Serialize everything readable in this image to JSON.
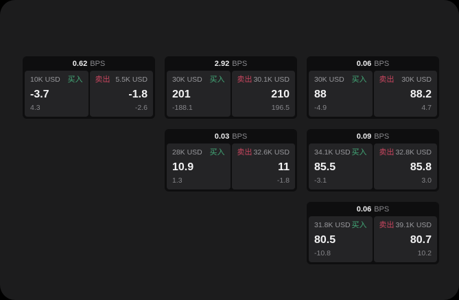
{
  "labels": {
    "buy": "买入",
    "sell": "卖出",
    "bps_unit": "BPS"
  },
  "colors": {
    "buy_green": "#43a978",
    "sell_red": "#c9465f",
    "background": "#1c1c1d",
    "card": "#0e0e0f",
    "panel": "#242426"
  },
  "cards": [
    {
      "row": 1,
      "col": 1,
      "bps": "0.62",
      "buy": {
        "size": "10K USD",
        "price": "-3.7",
        "delta": "4.3"
      },
      "sell": {
        "size": "5.5K USD",
        "price": "-1.8",
        "delta": "-2.6"
      }
    },
    {
      "row": 1,
      "col": 2,
      "bps": "2.92",
      "buy": {
        "size": "30K USD",
        "price": "201",
        "delta": "-188.1"
      },
      "sell": {
        "size": "30.1K USD",
        "price": "210",
        "delta": "196.5"
      }
    },
    {
      "row": 1,
      "col": 3,
      "bps": "0.06",
      "buy": {
        "size": "30K USD",
        "price": "88",
        "delta": "-4.9"
      },
      "sell": {
        "size": "30K USD",
        "price": "88.2",
        "delta": "4.7"
      }
    },
    {
      "row": 2,
      "col": 2,
      "bps": "0.03",
      "buy": {
        "size": "28K USD",
        "price": "10.9",
        "delta": "1.3"
      },
      "sell": {
        "size": "32.6K USD",
        "price": "11",
        "delta": "-1.8"
      }
    },
    {
      "row": 2,
      "col": 3,
      "bps": "0.09",
      "buy": {
        "size": "34.1K USD",
        "price": "85.5",
        "delta": "-3.1"
      },
      "sell": {
        "size": "32.8K USD",
        "price": "85.8",
        "delta": "3.0"
      }
    },
    {
      "row": 3,
      "col": 3,
      "bps": "0.06",
      "buy": {
        "size": "31.8K USD",
        "price": "80.5",
        "delta": "-10.8"
      },
      "sell": {
        "size": "39.1K USD",
        "price": "80.7",
        "delta": "10.2"
      }
    }
  ]
}
